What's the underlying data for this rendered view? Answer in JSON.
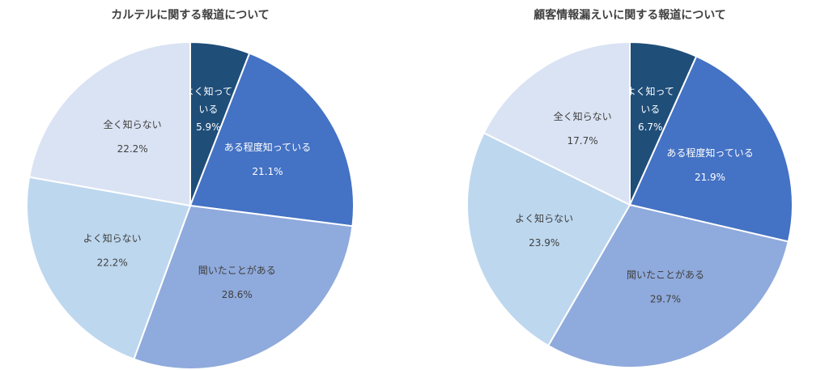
{
  "chart_data": [
    {
      "type": "pie",
      "title": "カルテルに関する報道について",
      "start_angle_deg": 0,
      "direction": "clockwise",
      "categories": [
        "よく知っている",
        "ある程度知っている",
        "聞いたことがある",
        "よく知らない",
        "全く知らない"
      ],
      "values": [
        5.9,
        21.1,
        28.6,
        22.2,
        22.2
      ],
      "colors": [
        "#1f4e79",
        "#4472c4",
        "#8faadc",
        "#bdd7ee",
        "#dae3f3"
      ],
      "labels": [
        {
          "lines": [
            "よく知って",
            "いる",
            "5.9%"
          ],
          "color": "#ffffff"
        },
        {
          "lines": [
            "ある程度知っている",
            "21.1%"
          ],
          "color": "#ffffff"
        },
        {
          "lines": [
            "聞いたことがある",
            "28.6%"
          ],
          "color": "#404040"
        },
        {
          "lines": [
            "よく知らない",
            "22.2%"
          ],
          "color": "#404040"
        },
        {
          "lines": [
            "全く知らない",
            "22.2%"
          ],
          "color": "#404040"
        }
      ],
      "legend": "none"
    },
    {
      "type": "pie",
      "title": "顧客情報漏えいに関する報道について",
      "start_angle_deg": 0,
      "direction": "clockwise",
      "categories": [
        "よく知っている",
        "ある程度知っている",
        "聞いたことがある",
        "よく知らない",
        "全く知らない"
      ],
      "values": [
        6.7,
        21.9,
        29.7,
        23.9,
        17.7
      ],
      "colors": [
        "#1f4e79",
        "#4472c4",
        "#8faadc",
        "#bdd7ee",
        "#dae3f3"
      ],
      "labels": [
        {
          "lines": [
            "よく知って",
            "いる",
            "6.7%"
          ],
          "color": "#ffffff"
        },
        {
          "lines": [
            "ある程度知っている",
            "21.9%"
          ],
          "color": "#ffffff"
        },
        {
          "lines": [
            "聞いたことがある",
            "29.7%"
          ],
          "color": "#404040"
        },
        {
          "lines": [
            "よく知らない",
            "23.9%"
          ],
          "color": "#404040"
        },
        {
          "lines": [
            "全く知らない",
            "17.7%"
          ],
          "color": "#404040"
        }
      ],
      "legend": "none"
    }
  ]
}
